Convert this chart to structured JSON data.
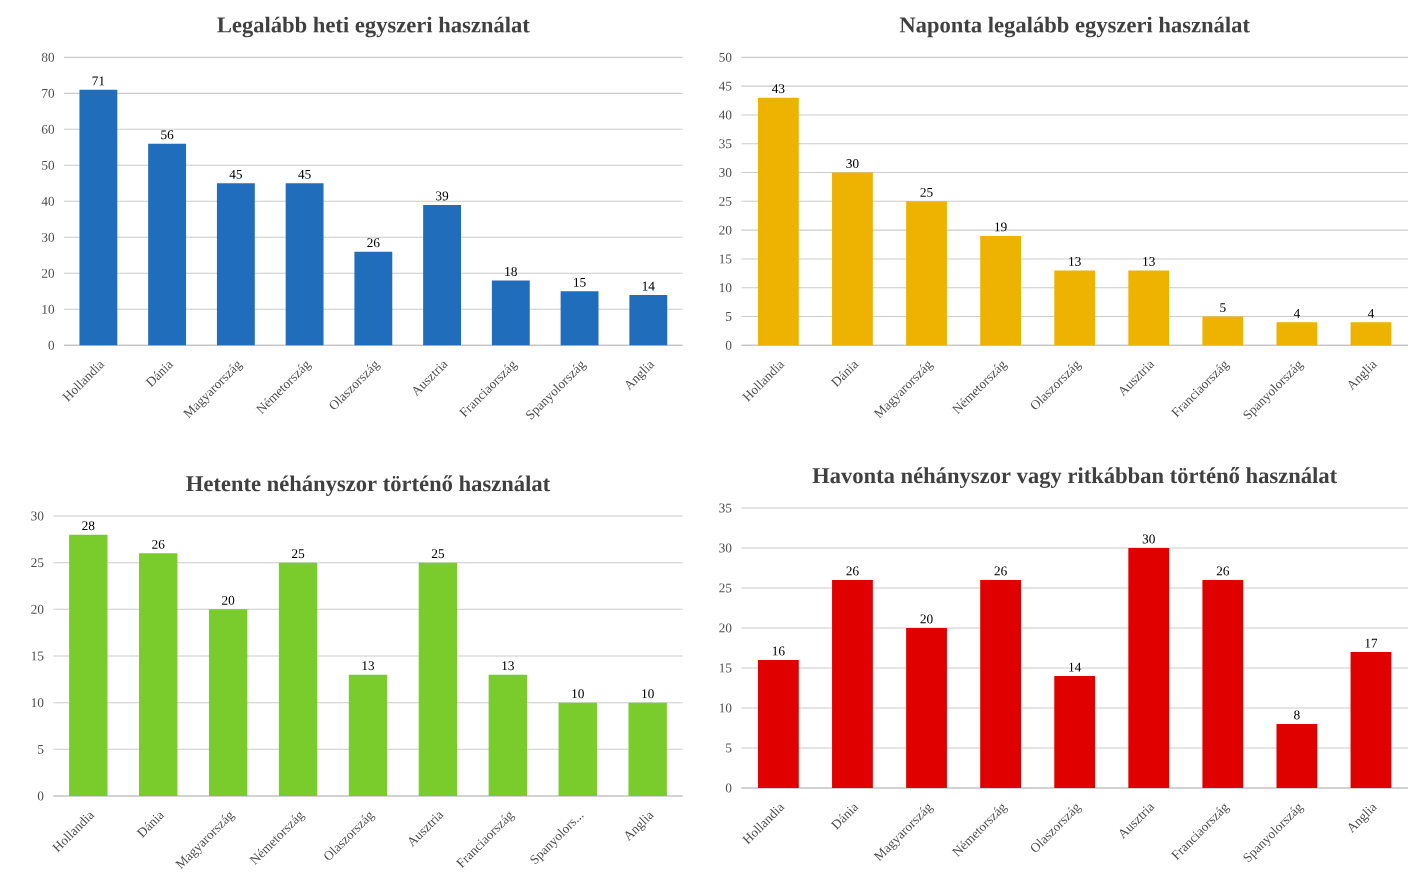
{
  "chart_data": [
    {
      "type": "bar",
      "title": "Legalább heti egyszeri használat",
      "categories": [
        "Hollandia",
        "Dánia",
        "Magyarország",
        "Németország",
        "Olaszország",
        "Ausztria",
        "Franciaország",
        "Spanyolország",
        "Anglia"
      ],
      "values": [
        71,
        56,
        45,
        45,
        26,
        39,
        18,
        15,
        14
      ],
      "color": "#1f6dbb",
      "ylim": [
        0,
        80
      ],
      "yticks": [
        0,
        10,
        20,
        30,
        40,
        50,
        60,
        70,
        80
      ],
      "grid": "y",
      "data_labels": true
    },
    {
      "type": "bar",
      "title": "Naponta legalább egyszeri használat",
      "categories": [
        "Hollandia",
        "Dánia",
        "Magyarország",
        "Németország",
        "Olaszország",
        "Ausztria",
        "Franciaország",
        "Spanyolország",
        "Anglia"
      ],
      "values": [
        43,
        30,
        25,
        19,
        13,
        13,
        5,
        4,
        4
      ],
      "color": "#eeb300",
      "ylim": [
        0,
        50
      ],
      "yticks": [
        0,
        5,
        10,
        15,
        20,
        25,
        30,
        35,
        40,
        45,
        50
      ],
      "grid": "y",
      "data_labels": true
    },
    {
      "type": "bar",
      "title": "Hetente néhányszor történő használat",
      "categories": [
        "Hollandia",
        "Dánia",
        "Magyarország",
        "Németország",
        "Olaszország",
        "Ausztria",
        "Franciaország",
        "Spanyolors...",
        "Anglia"
      ],
      "values": [
        28,
        26,
        20,
        25,
        13,
        25,
        13,
        10,
        10
      ],
      "color": "#7acb2c",
      "ylim": [
        0,
        30
      ],
      "yticks": [
        0,
        5,
        10,
        15,
        20,
        25,
        30
      ],
      "grid": "y",
      "data_labels": true
    },
    {
      "type": "bar",
      "title": "Havonta néhányszor vagy ritkábban történő használat",
      "categories": [
        "Hollandia",
        "Dánia",
        "Magyarország",
        "Németország",
        "Olaszország",
        "Ausztria",
        "Franciaország",
        "Spanyolország",
        "Anglia"
      ],
      "values": [
        16,
        26,
        20,
        26,
        14,
        30,
        26,
        8,
        17
      ],
      "color": "#e00000",
      "ylim": [
        0,
        35
      ],
      "yticks": [
        0,
        5,
        10,
        15,
        20,
        25,
        30,
        35
      ],
      "grid": "y",
      "data_labels": true
    }
  ]
}
